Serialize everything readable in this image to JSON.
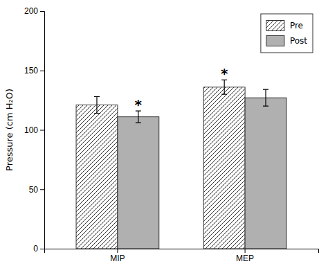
{
  "chart_data": {
    "type": "bar",
    "categories": [
      "MIP",
      "MEP"
    ],
    "series": [
      {
        "name": "Pre",
        "color": "white",
        "values": [
          121,
          136
        ],
        "errors": [
          7,
          6
        ]
      },
      {
        "name": "Post",
        "color": "#b0b0b0",
        "values": [
          111,
          127
        ],
        "errors": [
          5,
          7
        ]
      }
    ],
    "y_label": "Pressure (cm H₂O)",
    "ylim": [
      0,
      200
    ],
    "yticks": [
      0,
      50,
      100,
      150,
      200
    ],
    "annotations": [
      {
        "text": "*",
        "category": "MIP",
        "series": "Post"
      },
      {
        "text": "*",
        "category": "MEP",
        "series": "Pre"
      }
    ],
    "legend": "upper right",
    "grid": false
  }
}
